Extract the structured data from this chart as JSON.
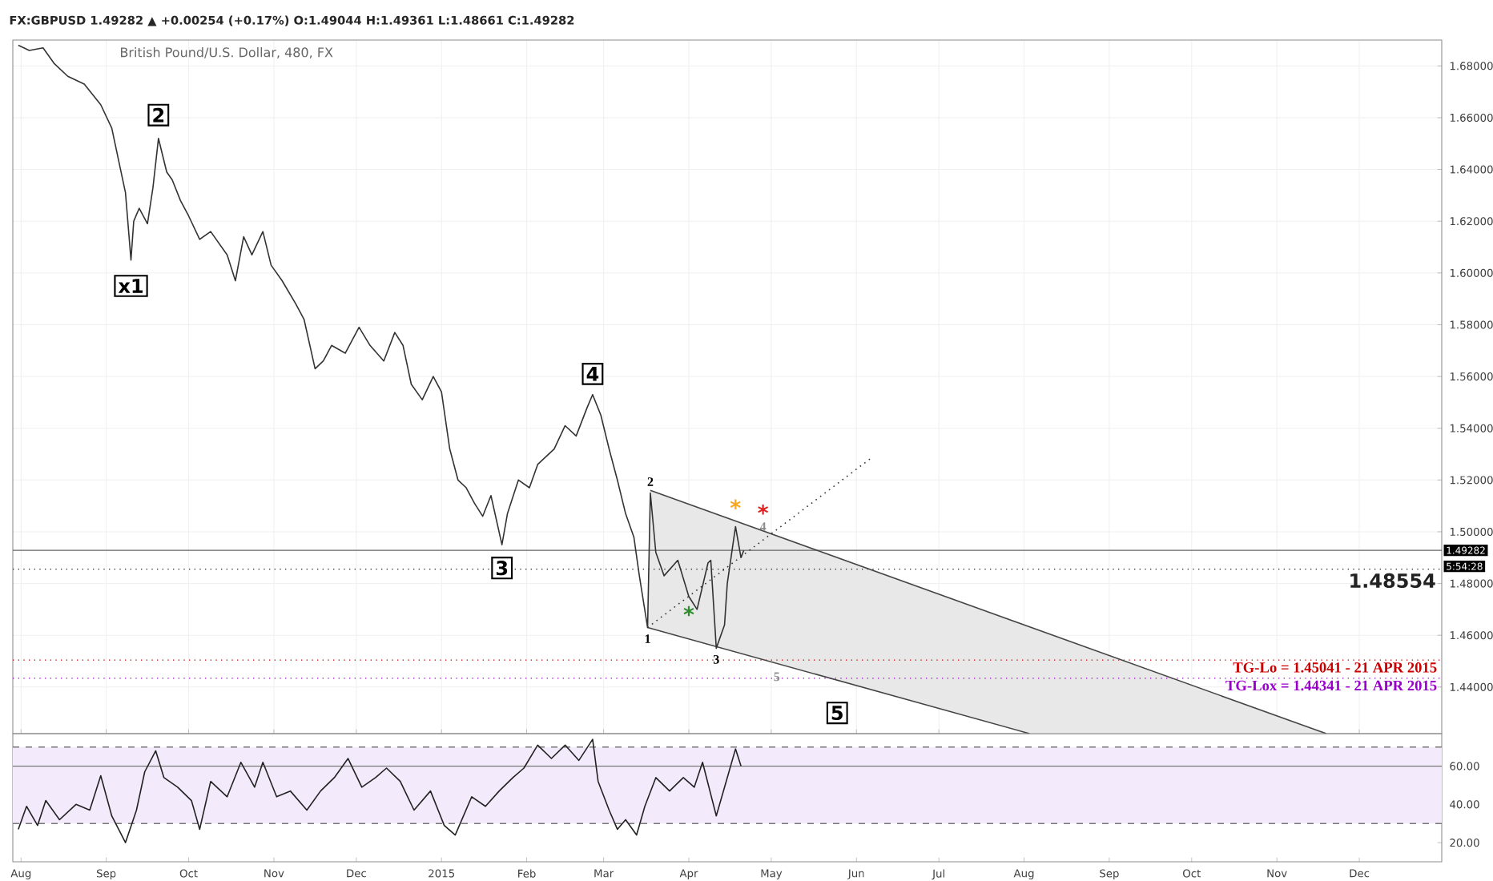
{
  "chart_data": [
    {
      "type": "line",
      "title": "British Pound/U.S. Dollar, 480, FX",
      "subtitle": "FX:GBPUSD 1.49282 ▲ +0.00254 (+0.17%) O:1.49044 H:1.49361 L:1.48661 C:1.49282",
      "xlim": [
        "2014-07-29",
        "2015-12-31"
      ],
      "xticks": [
        {
          "value": "2014-08-01",
          "label": null
        },
        {
          "value": "2014-09-01",
          "label": null
        },
        {
          "value": "2014-10-01",
          "label": null
        },
        {
          "value": "2014-11-01",
          "label": null
        },
        {
          "value": "2014-12-01",
          "label": null
        },
        {
          "value": "2015-01-01",
          "label": null
        },
        {
          "value": "2015-02-01",
          "label": null
        },
        {
          "value": "2015-03-01",
          "label": null
        },
        {
          "value": "2015-04-01",
          "label": null
        },
        {
          "value": "2015-05-01",
          "label": null
        },
        {
          "value": "2015-06-01",
          "label": null
        },
        {
          "value": "2015-07-01",
          "label": null
        },
        {
          "value": "2015-08-01",
          "label": null
        },
        {
          "value": "2015-09-01",
          "label": null
        },
        {
          "value": "2015-10-01",
          "label": null
        },
        {
          "value": "2015-11-01",
          "label": null
        },
        {
          "value": "2015-12-01",
          "label": null
        }
      ],
      "ylim": [
        1.422,
        1.69
      ],
      "yticks": [
        {
          "value": 1.44,
          "label": "1.44000"
        },
        {
          "value": 1.46,
          "label": "1.46000"
        },
        {
          "value": 1.48,
          "label": "1.48000"
        },
        {
          "value": 1.5,
          "label": "1.50000"
        },
        {
          "value": 1.52,
          "label": "1.52000"
        },
        {
          "value": 1.54,
          "label": "1.54000"
        },
        {
          "value": 1.56,
          "label": "1.56000"
        },
        {
          "value": 1.58,
          "label": "1.58000"
        },
        {
          "value": 1.6,
          "label": "1.60000"
        },
        {
          "value": 1.62,
          "label": "1.62000"
        },
        {
          "value": 1.64,
          "label": "1.64000"
        },
        {
          "value": 1.66,
          "label": "1.66000"
        },
        {
          "value": 1.68,
          "label": "1.68000"
        }
      ],
      "tick_labels": "y",
      "grid": true,
      "marker": "none",
      "series": [
        {
          "color": "#333333",
          "x": [
            "2014-07-31",
            "2014-08-04",
            "2014-08-09",
            "2014-08-13",
            "2014-08-18",
            "2014-08-24",
            "2014-08-30",
            "2014-09-03",
            "2014-09-06",
            "2014-09-08",
            "2014-09-10",
            "2014-09-11",
            "2014-09-13",
            "2014-09-16",
            "2014-09-18",
            "2014-09-20",
            "2014-09-23",
            "2014-09-25",
            "2014-09-28",
            "2014-10-01",
            "2014-10-05",
            "2014-10-09",
            "2014-10-15",
            "2014-10-18",
            "2014-10-21",
            "2014-10-24",
            "2014-10-28",
            "2014-10-31",
            "2014-11-04",
            "2014-11-09",
            "2014-11-12",
            "2014-11-16",
            "2014-11-19",
            "2014-11-22",
            "2014-11-27",
            "2014-12-02",
            "2014-12-06",
            "2014-12-11",
            "2014-12-15",
            "2014-12-18",
            "2014-12-21",
            "2014-12-25",
            "2014-12-29",
            "2015-01-01",
            "2015-01-04",
            "2015-01-07",
            "2015-01-10",
            "2015-01-13",
            "2015-01-16",
            "2015-01-19",
            "2015-01-23",
            "2015-01-25",
            "2015-01-29",
            "2015-02-02",
            "2015-02-05",
            "2015-02-11",
            "2015-02-15",
            "2015-02-19",
            "2015-02-23",
            "2015-02-25",
            "2015-02-28",
            "2015-03-03",
            "2015-03-06",
            "2015-03-09",
            "2015-03-12",
            "2015-03-14",
            "2015-03-17",
            "2015-03-18",
            "2015-03-20",
            "2015-03-23",
            "2015-03-28",
            "2015-04-01",
            "2015-04-04",
            "2015-04-08",
            "2015-04-09",
            "2015-04-11",
            "2015-04-14",
            "2015-04-15",
            "2015-04-18",
            "2015-04-20",
            "2015-04-21"
          ],
          "values": [
            1.688,
            1.686,
            1.687,
            1.681,
            1.676,
            1.673,
            1.665,
            1.656,
            1.641,
            1.631,
            1.605,
            1.62,
            1.625,
            1.619,
            1.633,
            1.652,
            1.639,
            1.636,
            1.628,
            1.622,
            1.613,
            1.616,
            1.607,
            1.597,
            1.614,
            1.607,
            1.616,
            1.603,
            1.597,
            1.588,
            1.582,
            1.563,
            1.566,
            1.572,
            1.569,
            1.579,
            1.572,
            1.566,
            1.577,
            1.572,
            1.557,
            1.551,
            1.56,
            1.554,
            1.532,
            1.52,
            1.517,
            1.511,
            1.506,
            1.514,
            1.495,
            1.507,
            1.52,
            1.517,
            1.526,
            1.532,
            1.541,
            1.537,
            1.548,
            1.553,
            1.545,
            1.532,
            1.52,
            1.507,
            1.498,
            1.483,
            1.463,
            1.515,
            1.492,
            1.483,
            1.489,
            1.475,
            1.47,
            1.488,
            1.489,
            1.455,
            1.464,
            1.48,
            1.502,
            1.49,
            1.4928
          ]
        },
        {
          "color": "#444444",
          "x": [
            "2015-03-18",
            "2015-11-19"
          ],
          "values": [
            1.516,
            1.422
          ]
        },
        {
          "color": "#444444",
          "x": [
            "2015-03-17",
            "2015-08-03"
          ],
          "values": [
            1.463,
            1.422
          ]
        },
        {
          "color": "#333333",
          "line_style": "dotted",
          "x": [
            "2015-03-17",
            "2015-06-07"
          ],
          "values": [
            1.463,
            1.529
          ]
        }
      ],
      "ref_lines": [
        {
          "axis": "y",
          "value": 1.49282,
          "label": "1.49282",
          "color": "#666666",
          "line_style": "solid"
        },
        {
          "axis": "y",
          "value": 1.48554,
          "label": "1.48554",
          "color": "#222222",
          "line_style": "dotted"
        },
        {
          "axis": "y",
          "value": 1.45041,
          "label": "TG-Lo = 1.45041 - 21 APR 2015",
          "color": "#cc0000",
          "line_style": "dotted"
        },
        {
          "axis": "y",
          "value": 1.44341,
          "label": "TG-Lox = 1.44341 - 21 APR 2015",
          "color": "#9900cc",
          "line_style": "dotted"
        }
      ],
      "annotations": [
        {
          "text": "x1",
          "x": "2014-09-10",
          "y": 1.595
        },
        {
          "text": "2",
          "x": "2014-09-20",
          "y": 1.661
        },
        {
          "text": "3",
          "x": "2015-01-23",
          "y": 1.486
        },
        {
          "text": "4",
          "x": "2015-02-25",
          "y": 1.561
        },
        {
          "text": "5",
          "x": "2015-05-25",
          "y": 1.43
        },
        {
          "text": "1",
          "x": "2015-03-17",
          "y": 1.463
        },
        {
          "text": "2",
          "x": "2015-03-18",
          "y": 1.515
        },
        {
          "text": "3",
          "x": "2015-04-11",
          "y": 1.455
        },
        {
          "text": "4",
          "x": "2015-04-28",
          "y": 1.502
        },
        {
          "text": "5",
          "x": "2015-05-03",
          "y": 1.444
        },
        {
          "text": "*",
          "x": "2015-04-01",
          "y": 1.475
        },
        {
          "text": "*",
          "x": "2015-04-18",
          "y": 1.502
        },
        {
          "text": "*",
          "x": "2015-04-28",
          "y": 1.5
        },
        "5:54:28"
      ]
    },
    {
      "type": "line",
      "xlim": [
        "2014-07-29",
        "2015-12-31"
      ],
      "xticks": [
        {
          "value": "2014-08-01",
          "label": "Aug"
        },
        {
          "value": "2014-09-01",
          "label": "Sep"
        },
        {
          "value": "2014-10-01",
          "label": "Oct"
        },
        {
          "value": "2014-11-01",
          "label": "Nov"
        },
        {
          "value": "2014-12-01",
          "label": "Dec"
        },
        {
          "value": "2015-01-01",
          "label": "2015"
        },
        {
          "value": "2015-02-01",
          "label": "Feb"
        },
        {
          "value": "2015-03-01",
          "label": "Mar"
        },
        {
          "value": "2015-04-01",
          "label": "Apr"
        },
        {
          "value": "2015-05-01",
          "label": "May"
        },
        {
          "value": "2015-06-01",
          "label": "Jun"
        },
        {
          "value": "2015-07-01",
          "label": "Jul"
        },
        {
          "value": "2015-08-01",
          "label": "Aug"
        },
        {
          "value": "2015-09-01",
          "label": "Sep"
        },
        {
          "value": "2015-10-01",
          "label": "Oct"
        },
        {
          "value": "2015-11-01",
          "label": "Nov"
        },
        {
          "value": "2015-12-01",
          "label": "Dec"
        }
      ],
      "ylim": [
        10,
        77
      ],
      "yticks": [
        {
          "value": 20,
          "label": "20.00"
        },
        {
          "value": 40,
          "label": "40.00"
        },
        {
          "value": 60,
          "label": "60.00"
        }
      ],
      "marker": "none",
      "series": [
        {
          "color": "#222222",
          "x": [
            "2014-07-31",
            "2014-08-03",
            "2014-08-07",
            "2014-08-10",
            "2014-08-15",
            "2014-08-21",
            "2014-08-26",
            "2014-08-30",
            "2014-09-03",
            "2014-09-08",
            "2014-09-12",
            "2014-09-15",
            "2014-09-19",
            "2014-09-22",
            "2014-09-27",
            "2014-10-02",
            "2014-10-05",
            "2014-10-09",
            "2014-10-15",
            "2014-10-20",
            "2014-10-25",
            "2014-10-28",
            "2014-11-02",
            "2014-11-07",
            "2014-11-13",
            "2014-11-18",
            "2014-11-23",
            "2014-11-28",
            "2014-12-03",
            "2014-12-08",
            "2014-12-12",
            "2014-12-17",
            "2014-12-22",
            "2014-12-28",
            "2015-01-02",
            "2015-01-06",
            "2015-01-12",
            "2015-01-17",
            "2015-01-22",
            "2015-01-27",
            "2015-01-31",
            "2015-02-05",
            "2015-02-10",
            "2015-02-15",
            "2015-02-20",
            "2015-02-25",
            "2015-02-27",
            "2015-03-03",
            "2015-03-06",
            "2015-03-09",
            "2015-03-13",
            "2015-03-16",
            "2015-03-20",
            "2015-03-25",
            "2015-03-30",
            "2015-04-03",
            "2015-04-06",
            "2015-04-11",
            "2015-04-15",
            "2015-04-18",
            "2015-04-20"
          ],
          "values": [
            27,
            39,
            29,
            42,
            32,
            40,
            37,
            55,
            34,
            20,
            37,
            57,
            68,
            54,
            49,
            42,
            27,
            52,
            44,
            62,
            49,
            62,
            44,
            47,
            37,
            47,
            54,
            64,
            49,
            54,
            59,
            52,
            37,
            47,
            29,
            24,
            44,
            39,
            47,
            54,
            59,
            71,
            64,
            71,
            63,
            74,
            52,
            37,
            27,
            32,
            24,
            39,
            54,
            47,
            54,
            49,
            62,
            34,
            54,
            69,
            60
          ]
        }
      ],
      "bands": [
        {
          "axis": "y",
          "from": 30,
          "to": 70,
          "color": "#f3eafb"
        }
      ],
      "ref_lines": [
        {
          "axis": "y",
          "value": 70,
          "color": "#777777",
          "line_style": "dashed"
        },
        {
          "axis": "y",
          "value": 30,
          "color": "#777777",
          "line_style": "dashed"
        },
        {
          "axis": "y",
          "value": 60,
          "color": "#777777",
          "line_style": "solid"
        }
      ]
    }
  ]
}
